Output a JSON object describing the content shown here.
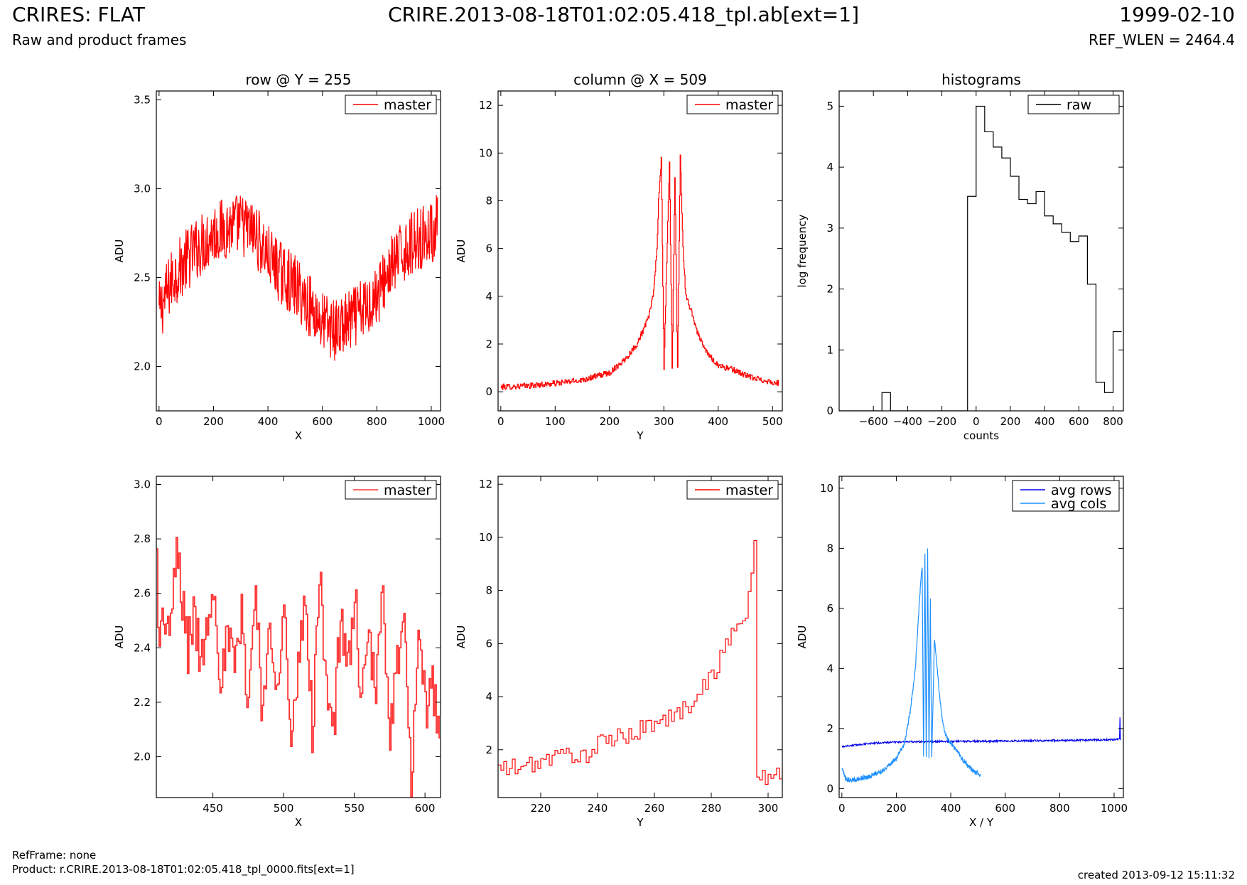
{
  "header": {
    "title": "CRIRES: FLAT",
    "subtitle": "Raw and product frames",
    "file": "CRIRE.2013-08-18T01:02:05.418_tpl.ab[ext=1]",
    "date": "1999-02-10",
    "ref_wlen": "REF_WLEN = 2464.4"
  },
  "footer": {
    "ref_frame": "RefFrame: none",
    "product": "Product: r.CRIRE.2013-08-18T01:02:05.418_tpl_0000.fits[ext=1]",
    "created": "created 2013-09-12 15:11:32"
  },
  "chart_data": [
    {
      "type": "line",
      "title": "row @ Y = 255",
      "xlabel": "X",
      "ylabel": "ADU",
      "xlim": [
        -10,
        1034
      ],
      "ylim": [
        1.75,
        3.55
      ],
      "xticks": [
        0,
        200,
        400,
        600,
        800,
        1000
      ],
      "yticks": [
        2.0,
        2.5,
        3.0,
        3.5
      ],
      "ytick_format": 1,
      "legend": "top-right",
      "series": [
        {
          "name": "master",
          "color": "#ff0000",
          "style": "line",
          "x": [
            0,
            50,
            100,
            150,
            200,
            250,
            300,
            350,
            400,
            450,
            500,
            550,
            600,
            650,
            700,
            750,
            800,
            850,
            900,
            950,
            1000,
            1023
          ],
          "y": [
            2.3,
            2.5,
            2.6,
            2.68,
            2.75,
            2.78,
            2.8,
            2.75,
            2.62,
            2.52,
            2.45,
            2.35,
            2.25,
            2.2,
            2.25,
            2.32,
            2.4,
            2.55,
            2.65,
            2.72,
            2.75,
            2.8
          ],
          "noise": 0.18,
          "min": 1.87,
          "max": 3.16
        }
      ]
    },
    {
      "type": "line",
      "title": "column @ X = 509",
      "xlabel": "Y",
      "ylabel": "ADU",
      "xlim": [
        -5,
        518
      ],
      "ylim": [
        -0.8,
        12.6
      ],
      "xticks": [
        0,
        100,
        200,
        300,
        400,
        500
      ],
      "yticks": [
        0,
        2,
        4,
        6,
        8,
        10,
        12
      ],
      "ytick_format": 0,
      "legend": "top-right",
      "series": [
        {
          "name": "master",
          "color": "#ff0000",
          "style": "step",
          "x": [
            0,
            50,
            100,
            150,
            200,
            230,
            250,
            270,
            280,
            287,
            290,
            295,
            300,
            310,
            315,
            320,
            325,
            330,
            335,
            340,
            350,
            360,
            370,
            380,
            400,
            430,
            460,
            500,
            511
          ],
          "y": [
            0.2,
            0.25,
            0.35,
            0.5,
            0.8,
            1.4,
            2.0,
            3.0,
            4.0,
            6.0,
            8.0,
            9.7,
            1.0,
            9.7,
            1.0,
            9.0,
            1.0,
            9.9,
            6.0,
            4.0,
            3.4,
            2.6,
            2.0,
            1.6,
            1.1,
            0.9,
            0.6,
            0.4,
            0.35
          ],
          "noise": 0.12
        }
      ]
    },
    {
      "type": "line",
      "title": "histograms",
      "xlabel": "counts",
      "ylabel": "log frequency",
      "xlim": [
        -800,
        860
      ],
      "ylim": [
        0,
        5.25
      ],
      "xticks": [
        -600,
        -400,
        -200,
        0,
        200,
        400,
        600,
        800
      ],
      "yticks": [
        0,
        1,
        2,
        3,
        4,
        5
      ],
      "ytick_format": 0,
      "legend": "top-right",
      "series": [
        {
          "name": "raw",
          "color": "#000000",
          "style": "hist",
          "edges": [
            -800,
            -750,
            -700,
            -650,
            -600,
            -550,
            -500,
            -450,
            -400,
            -350,
            -300,
            -250,
            -200,
            -150,
            -100,
            -50,
            0,
            50,
            100,
            150,
            200,
            250,
            300,
            350,
            400,
            450,
            500,
            550,
            600,
            650,
            700,
            750,
            800,
            850
          ],
          "values": [
            0,
            0,
            0,
            0,
            0,
            0.3,
            0,
            0,
            0,
            0,
            0,
            0,
            0,
            0,
            0,
            3.52,
            5.0,
            4.58,
            4.33,
            4.15,
            3.85,
            3.47,
            3.4,
            3.6,
            3.2,
            3.07,
            2.93,
            2.78,
            2.87,
            2.08,
            0.47,
            0.3,
            1.3
          ]
        }
      ]
    },
    {
      "type": "line",
      "title": "",
      "xlabel": "X",
      "ylabel": "ADU",
      "xlim": [
        410,
        611
      ],
      "ylim": [
        1.85,
        3.03
      ],
      "xticks": [
        450,
        500,
        550,
        600
      ],
      "yticks": [
        2.0,
        2.2,
        2.4,
        2.6,
        2.8,
        3.0
      ],
      "ytick_format": 1,
      "legend": "top-right",
      "series": [
        {
          "name": "master",
          "color": "#ff3333",
          "style": "step",
          "x": [
            410,
            412,
            415,
            420,
            424,
            428,
            432,
            436,
            440,
            445,
            450,
            455,
            460,
            465,
            470,
            475,
            480,
            485,
            490,
            495,
            500,
            505,
            510,
            515,
            520,
            525,
            530,
            535,
            540,
            545,
            550,
            555,
            560,
            565,
            570,
            575,
            580,
            585,
            590,
            595,
            600,
            605,
            610
          ],
          "y": [
            2.73,
            2.4,
            2.52,
            2.45,
            2.77,
            2.58,
            2.4,
            2.52,
            2.38,
            2.45,
            2.67,
            2.3,
            2.42,
            2.33,
            2.5,
            2.2,
            2.65,
            2.12,
            2.48,
            2.3,
            2.55,
            2.02,
            2.3,
            2.6,
            2.1,
            2.65,
            2.3,
            2.1,
            2.5,
            2.3,
            2.6,
            2.18,
            2.42,
            2.25,
            2.6,
            2.1,
            2.35,
            2.45,
            1.93,
            2.38,
            2.18,
            2.27,
            2.1
          ],
          "noise": 0.1
        }
      ]
    },
    {
      "type": "line",
      "title": "",
      "xlabel": "Y",
      "ylabel": "ADU",
      "xlim": [
        205,
        305
      ],
      "ylim": [
        0.2,
        12.3
      ],
      "xticks": [
        220,
        240,
        260,
        280,
        300
      ],
      "yticks": [
        2,
        4,
        6,
        8,
        10,
        12
      ],
      "ytick_format": 0,
      "legend": "top-right",
      "series": [
        {
          "name": "master",
          "color": "#ff0000",
          "style": "step",
          "x": [
            205,
            210,
            215,
            220,
            225,
            230,
            235,
            240,
            245,
            250,
            255,
            260,
            265,
            270,
            272,
            275,
            280,
            283,
            285,
            288,
            290,
            292,
            294,
            295,
            296,
            300,
            305
          ],
          "y": [
            1.3,
            1.3,
            1.4,
            1.6,
            1.7,
            1.9,
            1.7,
            2.2,
            2.4,
            2.5,
            2.8,
            3.0,
            3.2,
            3.5,
            3.7,
            4.2,
            4.8,
            5.4,
            6.0,
            6.5,
            7.0,
            7.1,
            8.6,
            9.7,
            1.0,
            1.0,
            1.0
          ],
          "noise": 0.35
        }
      ]
    },
    {
      "type": "line",
      "title": "",
      "xlabel": "X / Y",
      "ylabel": "ADU",
      "xlim": [
        -10,
        1034
      ],
      "ylim": [
        -0.3,
        10.4
      ],
      "xticks": [
        0,
        200,
        400,
        600,
        800,
        1000
      ],
      "yticks": [
        0,
        2,
        4,
        6,
        8,
        10
      ],
      "ytick_format": 0,
      "legend": "top-right",
      "series": [
        {
          "name": "avg rows",
          "color": "#0000ee",
          "style": "line",
          "x": [
            0,
            100,
            200,
            400,
            600,
            800,
            1000,
            1020,
            1022,
            1023
          ],
          "y": [
            1.4,
            1.5,
            1.55,
            1.57,
            1.58,
            1.6,
            1.63,
            1.65,
            2.6,
            1.65
          ],
          "noise": 0.03
        },
        {
          "name": "avg cols",
          "color": "#1e90ff",
          "style": "line",
          "x": [
            0,
            15,
            50,
            100,
            150,
            200,
            230,
            250,
            270,
            280,
            290,
            295,
            300,
            305,
            310,
            315,
            320,
            325,
            330,
            340,
            350,
            360,
            370,
            380,
            400,
            420,
            440,
            460,
            480,
            500,
            511
          ],
          "y": [
            0.65,
            0.3,
            0.3,
            0.4,
            0.6,
            1.0,
            1.5,
            2.5,
            4.0,
            5.5,
            7.0,
            7.4,
            1.0,
            7.8,
            1.0,
            8.0,
            1.0,
            6.3,
            1.0,
            5.0,
            4.0,
            3.0,
            2.2,
            1.8,
            1.5,
            1.3,
            1.0,
            0.8,
            0.6,
            0.5,
            0.45
          ],
          "noise": 0.08
        }
      ]
    }
  ]
}
